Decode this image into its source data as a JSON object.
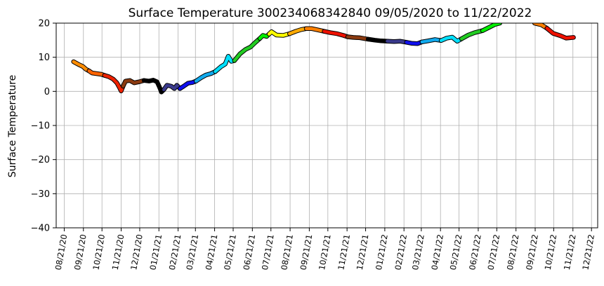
{
  "chart_data": {
    "type": "line",
    "title": "Surface Temperature 300234068342840  09/05/2020 to 11/22/2022",
    "xlabel": "",
    "ylabel": "Surface Temperature",
    "ylim": [
      -40,
      20
    ],
    "yticks": [
      -40,
      -30,
      -20,
      -10,
      0,
      10,
      20
    ],
    "xlim": [
      "2020-08-08",
      "2022-12-31"
    ],
    "xticks": [
      "08/21/20",
      "09/21/20",
      "10/21/20",
      "11/21/20",
      "12/21/20",
      "01/21/21",
      "02/21/21",
      "03/21/21",
      "04/21/21",
      "05/21/21",
      "06/21/21",
      "07/21/21",
      "08/21/21",
      "09/21/21",
      "10/21/21",
      "11/21/21",
      "12/21/21",
      "01/21/22",
      "02/21/22",
      "03/21/22",
      "04/21/22",
      "05/21/22",
      "06/21/22",
      "07/21/22",
      "08/21/22",
      "09/21/22",
      "10/21/22",
      "11/21/22",
      "12/21/22"
    ],
    "grid": true,
    "legend": "none",
    "segments": [
      {
        "color": "#ff8c00",
        "points": [
          [
            "2020-09-05",
            8.7
          ],
          [
            "2020-09-12",
            8.0
          ],
          [
            "2020-09-20",
            7.3
          ],
          [
            "2020-09-25",
            6.5
          ],
          [
            "2020-09-30",
            6.0
          ]
        ]
      },
      {
        "color": "#ff6400",
        "points": [
          [
            "2020-09-30",
            6.0
          ],
          [
            "2020-10-05",
            5.4
          ],
          [
            "2020-10-12",
            5.2
          ],
          [
            "2020-10-20",
            5.0
          ],
          [
            "2020-10-25",
            4.7
          ]
        ]
      },
      {
        "color": "#ee2200",
        "points": [
          [
            "2020-10-25",
            4.7
          ],
          [
            "2020-11-01",
            4.3
          ],
          [
            "2020-11-08",
            3.6
          ],
          [
            "2020-11-14",
            2.5
          ],
          [
            "2020-11-18",
            1.2
          ],
          [
            "2020-11-21",
            0.1
          ],
          [
            "2020-11-24",
            1.5
          ]
        ]
      },
      {
        "color": "#8b3a10",
        "points": [
          [
            "2020-11-24",
            1.5
          ],
          [
            "2020-11-28",
            3.0
          ],
          [
            "2020-12-05",
            3.2
          ],
          [
            "2020-12-12",
            2.5
          ],
          [
            "2020-12-20",
            2.8
          ],
          [
            "2020-12-28",
            3.2
          ]
        ]
      },
      {
        "color": "#000000",
        "points": [
          [
            "2020-12-28",
            3.2
          ],
          [
            "2021-01-05",
            3.0
          ],
          [
            "2021-01-12",
            3.3
          ],
          [
            "2021-01-18",
            2.8
          ],
          [
            "2021-01-22",
            1.2
          ],
          [
            "2021-01-25",
            -0.2
          ],
          [
            "2021-01-29",
            0.5
          ]
        ]
      },
      {
        "color": "#3a3a8c",
        "points": [
          [
            "2021-01-29",
            0.5
          ],
          [
            "2021-02-03",
            1.8
          ],
          [
            "2021-02-10",
            1.5
          ],
          [
            "2021-02-15",
            0.8
          ],
          [
            "2021-02-19",
            1.8
          ],
          [
            "2021-02-24",
            0.8
          ]
        ]
      },
      {
        "color": "#1010ee",
        "points": [
          [
            "2021-02-24",
            0.8
          ],
          [
            "2021-03-02",
            1.5
          ],
          [
            "2021-03-09",
            2.4
          ],
          [
            "2021-03-16",
            2.6
          ],
          [
            "2021-03-22",
            3.0
          ]
        ]
      },
      {
        "color": "#10aaee",
        "points": [
          [
            "2021-03-22",
            3.0
          ],
          [
            "2021-03-30",
            4.0
          ],
          [
            "2021-04-07",
            4.8
          ],
          [
            "2021-04-15",
            5.2
          ],
          [
            "2021-04-22",
            5.8
          ]
        ]
      },
      {
        "color": "#00e0ff",
        "points": [
          [
            "2021-04-22",
            5.8
          ],
          [
            "2021-05-01",
            7.2
          ],
          [
            "2021-05-08",
            8.0
          ],
          [
            "2021-05-13",
            10.3
          ],
          [
            "2021-05-18",
            8.8
          ],
          [
            "2021-05-23",
            9.0
          ]
        ]
      },
      {
        "color": "#22cc22",
        "points": [
          [
            "2021-05-23",
            9.0
          ],
          [
            "2021-06-01",
            11.0
          ],
          [
            "2021-06-10",
            12.3
          ],
          [
            "2021-06-18",
            13.0
          ],
          [
            "2021-06-25",
            14.2
          ],
          [
            "2021-07-03",
            15.5
          ]
        ]
      },
      {
        "color": "#00ee00",
        "points": [
          [
            "2021-07-03",
            15.5
          ],
          [
            "2021-07-08",
            16.4
          ],
          [
            "2021-07-14",
            16.1
          ],
          [
            "2021-07-18",
            16.8
          ]
        ]
      },
      {
        "color": "#ffff00",
        "points": [
          [
            "2021-07-18",
            16.8
          ],
          [
            "2021-07-22",
            17.5
          ],
          [
            "2021-07-30",
            16.5
          ],
          [
            "2021-08-10",
            16.4
          ],
          [
            "2021-08-20",
            16.9
          ]
        ]
      },
      {
        "color": "#ffaa00",
        "points": [
          [
            "2021-08-20",
            16.9
          ],
          [
            "2021-08-30",
            17.6
          ],
          [
            "2021-09-08",
            18.1
          ],
          [
            "2021-09-16",
            18.4
          ]
        ]
      },
      {
        "color": "#ff8000",
        "points": [
          [
            "2021-09-16",
            18.4
          ],
          [
            "2021-09-25",
            18.4
          ],
          [
            "2021-10-05",
            18.0
          ],
          [
            "2021-10-15",
            17.6
          ]
        ]
      },
      {
        "color": "#ee1100",
        "points": [
          [
            "2021-10-15",
            17.6
          ],
          [
            "2021-10-25",
            17.2
          ],
          [
            "2021-11-05",
            16.9
          ],
          [
            "2021-11-15",
            16.4
          ],
          [
            "2021-11-22",
            16.0
          ]
        ]
      },
      {
        "color": "#8b3a10",
        "points": [
          [
            "2021-11-22",
            16.0
          ],
          [
            "2021-12-01",
            15.8
          ],
          [
            "2021-12-12",
            15.7
          ],
          [
            "2021-12-25",
            15.3
          ]
        ]
      },
      {
        "color": "#000000",
        "points": [
          [
            "2021-12-25",
            15.3
          ],
          [
            "2022-01-05",
            15.0
          ],
          [
            "2022-01-15",
            14.8
          ],
          [
            "2022-01-25",
            14.7
          ]
        ]
      },
      {
        "color": "#3a3a8c",
        "points": [
          [
            "2022-01-25",
            14.7
          ],
          [
            "2022-02-05",
            14.6
          ],
          [
            "2022-02-15",
            14.7
          ],
          [
            "2022-02-25",
            14.4
          ]
        ]
      },
      {
        "color": "#1010ee",
        "points": [
          [
            "2022-02-25",
            14.4
          ],
          [
            "2022-03-05",
            14.1
          ],
          [
            "2022-03-15",
            14.0
          ],
          [
            "2022-03-22",
            14.5
          ]
        ]
      },
      {
        "color": "#10aaee",
        "points": [
          [
            "2022-03-22",
            14.5
          ],
          [
            "2022-04-01",
            14.8
          ],
          [
            "2022-04-12",
            15.2
          ],
          [
            "2022-04-22",
            14.9
          ]
        ]
      },
      {
        "color": "#00e0ff",
        "points": [
          [
            "2022-04-22",
            14.9
          ],
          [
            "2022-05-01",
            15.6
          ],
          [
            "2022-05-10",
            15.9
          ],
          [
            "2022-05-18",
            14.7
          ],
          [
            "2022-05-25",
            15.4
          ]
        ]
      },
      {
        "color": "#22cc22",
        "points": [
          [
            "2022-05-25",
            15.4
          ],
          [
            "2022-06-05",
            16.5
          ],
          [
            "2022-06-15",
            17.2
          ],
          [
            "2022-06-28",
            17.8
          ]
        ]
      },
      {
        "color": "#00ee00",
        "points": [
          [
            "2022-06-28",
            17.8
          ],
          [
            "2022-07-08",
            18.7
          ],
          [
            "2022-07-18",
            19.6
          ],
          [
            "2022-07-26",
            20.0
          ]
        ]
      },
      {
        "color": "#ff8000",
        "points": [
          [
            "2022-09-20",
            20.0
          ],
          [
            "2022-10-01",
            19.5
          ],
          [
            "2022-10-10",
            18.5
          ]
        ]
      },
      {
        "color": "#ee1100",
        "points": [
          [
            "2022-10-10",
            18.5
          ],
          [
            "2022-10-20",
            17.0
          ],
          [
            "2022-11-01",
            16.3
          ],
          [
            "2022-11-10",
            15.6
          ],
          [
            "2022-11-22",
            15.8
          ]
        ]
      }
    ]
  }
}
